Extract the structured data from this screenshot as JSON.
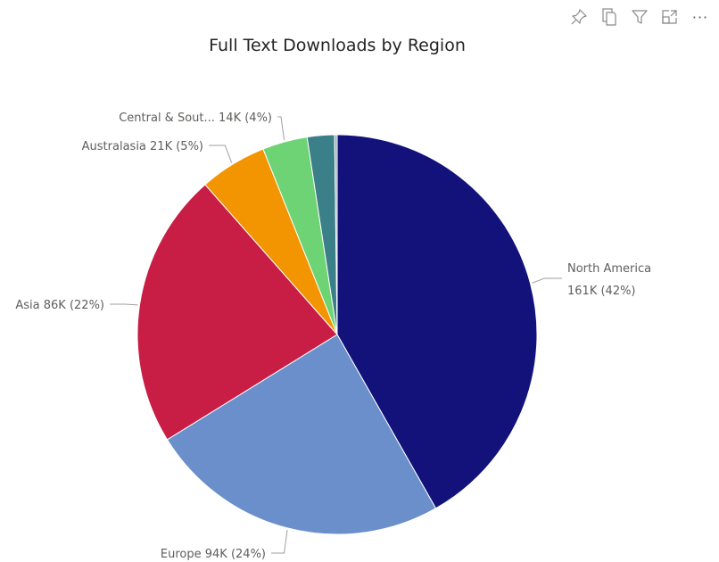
{
  "toolbar": {
    "icons": [
      "pin-icon",
      "copy-icon",
      "filter-icon",
      "focus-mode-icon",
      "more-options-icon"
    ],
    "more_label": "···"
  },
  "chart_data": {
    "type": "pie",
    "title": "Full Text Downloads by Region",
    "slices": [
      {
        "name": "North America",
        "value": 161000,
        "value_label": "161K",
        "percent_label": "(42%)",
        "label_lines": [
          "North America",
          "161K (42%)"
        ],
        "color": "#12127a"
      },
      {
        "name": "Europe",
        "value": 94000,
        "value_label": "94K",
        "percent_label": "(24%)",
        "label_lines": [
          "Europe 94K (24%)"
        ],
        "color": "#6b8fca"
      },
      {
        "name": "Asia",
        "value": 86000,
        "value_label": "86K",
        "percent_label": "(22%)",
        "label_lines": [
          "Asia 86K (22%)"
        ],
        "color": "#c81d44"
      },
      {
        "name": "Australasia",
        "value": 21000,
        "value_label": "21K",
        "percent_label": "(5%)",
        "label_lines": [
          "Australasia 21K (5%)"
        ],
        "color": "#f29500"
      },
      {
        "name": "Central & Sout...",
        "value": 14000,
        "value_label": "14K",
        "percent_label": "(4%)",
        "label_lines": [
          "Central & Sout... 14K (4%)"
        ],
        "color": "#6dd374"
      },
      {
        "name": "",
        "value": 8500,
        "color": "#3b7f89"
      },
      {
        "name": "",
        "value": 800,
        "color": "#9aa8b4"
      }
    ],
    "legend": "none"
  }
}
